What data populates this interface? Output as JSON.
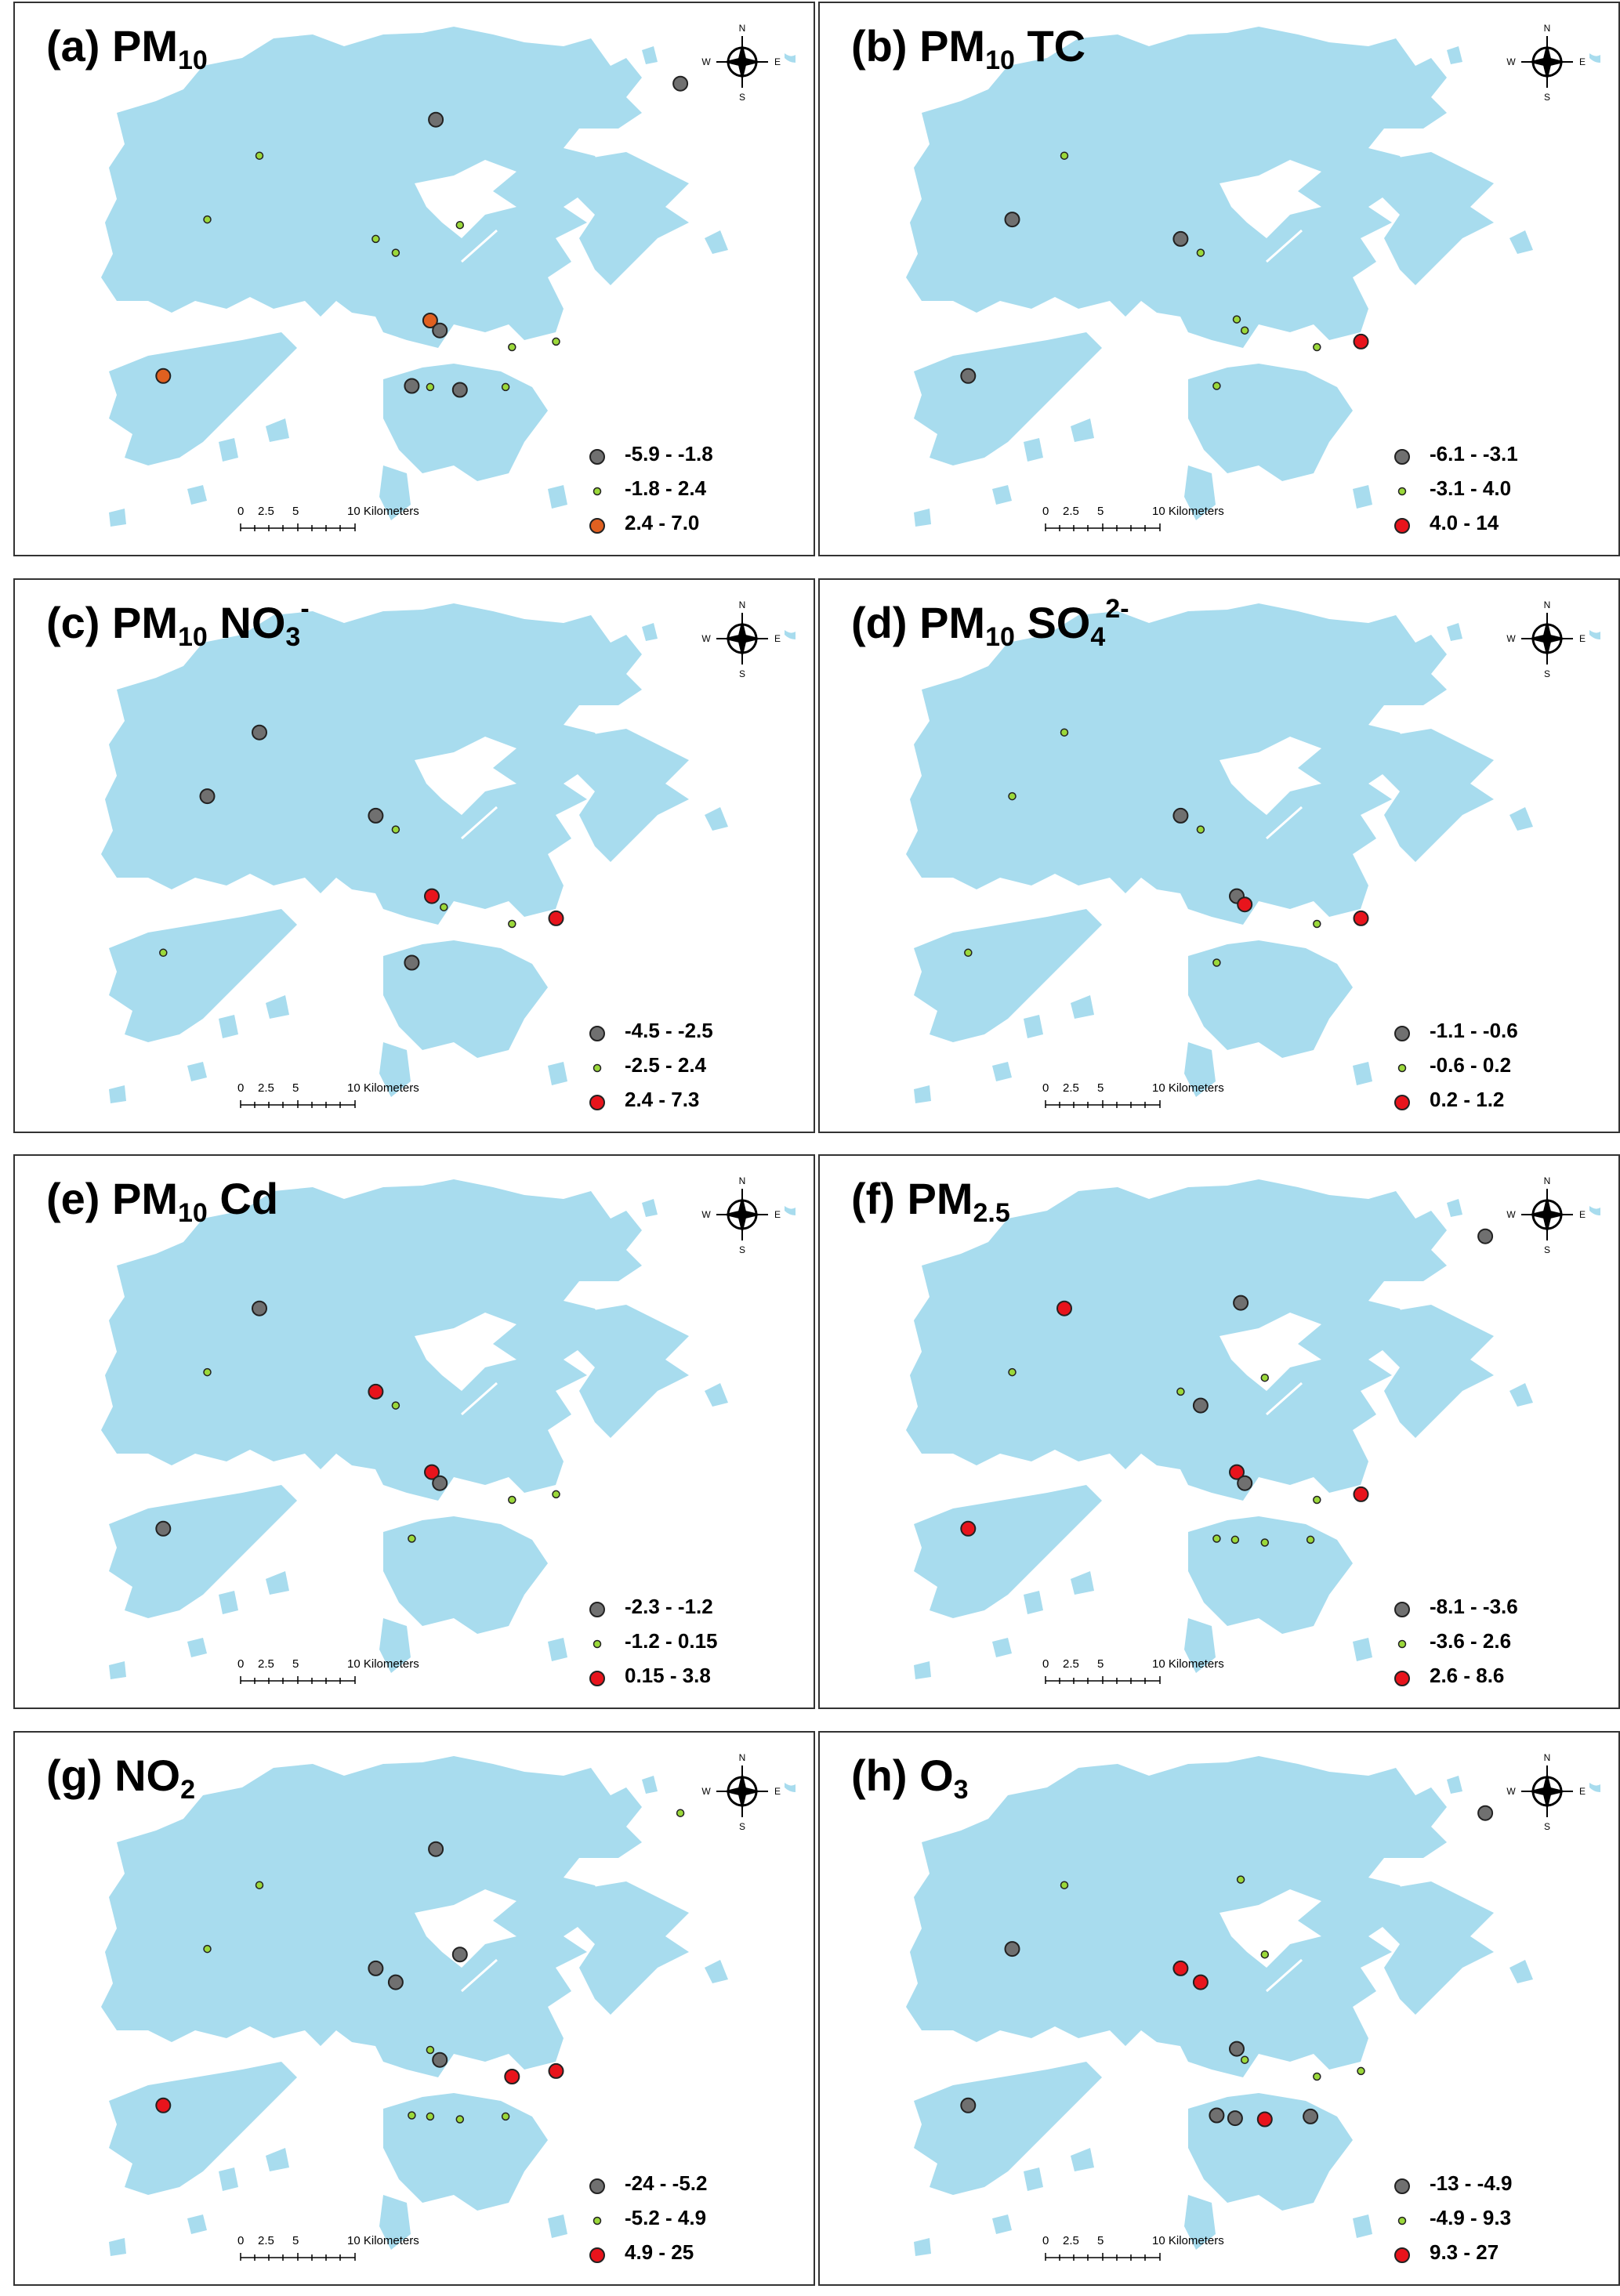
{
  "colors": {
    "land": "#a8dcee",
    "gray": "#707070",
    "green": "#9bd83a",
    "red": "#e8141c",
    "orange": "#e06020"
  },
  "compass": {
    "n": "N",
    "s": "S",
    "e": "E",
    "w": "W"
  },
  "scale": {
    "labels": [
      "0",
      "2.5",
      "5",
      "10 Kilometers"
    ]
  },
  "panels": [
    {
      "title": {
        "prefix": "(a) PM",
        "sub": "10",
        "suffix": "",
        "sup": ""
      },
      "legend": [
        "-5.9 - -1.8",
        "-1.8 - 2.4",
        "2.4 - 7.0"
      ],
      "high_color": "orange",
      "stations": [
        [
          "gray",
          0.525,
          0.21
        ],
        [
          "green",
          0.305,
          0.275
        ],
        [
          "green",
          0.24,
          0.39
        ],
        [
          "green",
          0.45,
          0.425
        ],
        [
          "green",
          0.475,
          0.45
        ],
        [
          "green",
          0.555,
          0.4
        ],
        [
          "orange",
          0.518,
          0.572
        ],
        [
          "gray",
          0.53,
          0.59
        ],
        [
          "green",
          0.62,
          0.62
        ],
        [
          "green",
          0.675,
          0.61
        ],
        [
          "gray",
          0.83,
          0.145
        ],
        [
          "orange",
          0.185,
          0.672
        ],
        [
          "gray",
          0.495,
          0.69
        ],
        [
          "green",
          0.518,
          0.692
        ],
        [
          "gray",
          0.555,
          0.697
        ],
        [
          "green",
          0.612,
          0.692
        ]
      ]
    },
    {
      "title": {
        "prefix": "(b) PM",
        "sub": "10",
        "suffix": " TC",
        "sup": ""
      },
      "legend": [
        "-6.1 - -3.1",
        "-3.1 - 4.0",
        "4.0 - 14"
      ],
      "high_color": "red",
      "stations": [
        [
          "green",
          0.305,
          0.275
        ],
        [
          "gray",
          0.24,
          0.39
        ],
        [
          "gray",
          0.45,
          0.425
        ],
        [
          "green",
          0.475,
          0.45
        ],
        [
          "green",
          0.52,
          0.57
        ],
        [
          "green",
          0.53,
          0.59
        ],
        [
          "green",
          0.62,
          0.62
        ],
        [
          "red",
          0.675,
          0.61
        ],
        [
          "gray",
          0.185,
          0.672
        ],
        [
          "green",
          0.495,
          0.69
        ]
      ]
    },
    {
      "title": {
        "prefix": "(c) PM",
        "sub": "10",
        "suffix": " NO",
        "sub2": "3",
        "sup": "-"
      },
      "legend": [
        "-4.5 - -2.5",
        "-2.5 - 2.4",
        "2.4 - 7.3"
      ],
      "high_color": "red",
      "stations": [
        [
          "gray",
          0.305,
          0.275
        ],
        [
          "gray",
          0.24,
          0.39
        ],
        [
          "gray",
          0.45,
          0.425
        ],
        [
          "green",
          0.475,
          0.45
        ],
        [
          "red",
          0.52,
          0.57
        ],
        [
          "green",
          0.535,
          0.59
        ],
        [
          "green",
          0.62,
          0.62
        ],
        [
          "red",
          0.675,
          0.61
        ],
        [
          "green",
          0.185,
          0.672
        ],
        [
          "gray",
          0.495,
          0.69
        ]
      ]
    },
    {
      "title": {
        "prefix": "(d) PM",
        "sub": "10",
        "suffix": " SO",
        "sub2": "4",
        "sup": "2-"
      },
      "legend": [
        "-1.1 - -0.6",
        "-0.6 - 0.2",
        "0.2 - 1.2"
      ],
      "high_color": "red",
      "stations": [
        [
          "green",
          0.305,
          0.275
        ],
        [
          "green",
          0.24,
          0.39
        ],
        [
          "gray",
          0.45,
          0.425
        ],
        [
          "green",
          0.475,
          0.45
        ],
        [
          "gray",
          0.52,
          0.57
        ],
        [
          "red",
          0.53,
          0.585
        ],
        [
          "green",
          0.62,
          0.62
        ],
        [
          "red",
          0.675,
          0.61
        ],
        [
          "green",
          0.185,
          0.672
        ],
        [
          "green",
          0.495,
          0.69
        ]
      ]
    },
    {
      "title": {
        "prefix": "(e) PM",
        "sub": "10",
        "suffix": " Cd",
        "sup": ""
      },
      "legend": [
        "-2.3 - -1.2",
        "-1.2 - 0.15",
        "0.15 - 3.8"
      ],
      "high_color": "red",
      "stations": [
        [
          "gray",
          0.305,
          0.275
        ],
        [
          "green",
          0.24,
          0.39
        ],
        [
          "red",
          0.45,
          0.425
        ],
        [
          "green",
          0.475,
          0.45
        ],
        [
          "red",
          0.52,
          0.57
        ],
        [
          "gray",
          0.53,
          0.59
        ],
        [
          "green",
          0.62,
          0.62
        ],
        [
          "green",
          0.675,
          0.61
        ],
        [
          "gray",
          0.185,
          0.672
        ],
        [
          "green",
          0.495,
          0.69
        ]
      ]
    },
    {
      "title": {
        "prefix": "(f) PM",
        "sub": "2.5",
        "suffix": "",
        "sup": ""
      },
      "legend": [
        "-8.1 - -3.6",
        "-3.6 - 2.6",
        "2.6 - 8.6"
      ],
      "high_color": "red",
      "stations": [
        [
          "red",
          0.305,
          0.275
        ],
        [
          "gray",
          0.525,
          0.265
        ],
        [
          "green",
          0.24,
          0.39
        ],
        [
          "green",
          0.45,
          0.425
        ],
        [
          "gray",
          0.475,
          0.45
        ],
        [
          "green",
          0.555,
          0.4
        ],
        [
          "red",
          0.52,
          0.57
        ],
        [
          "gray",
          0.53,
          0.59
        ],
        [
          "green",
          0.62,
          0.62
        ],
        [
          "red",
          0.675,
          0.61
        ],
        [
          "gray",
          0.83,
          0.145
        ],
        [
          "red",
          0.185,
          0.672
        ],
        [
          "green",
          0.495,
          0.69
        ],
        [
          "green",
          0.518,
          0.692
        ],
        [
          "green",
          0.555,
          0.697
        ],
        [
          "green",
          0.612,
          0.692
        ]
      ]
    },
    {
      "title": {
        "prefix": "(g) NO",
        "sub": "2",
        "suffix": "",
        "sup": ""
      },
      "legend": [
        "-24 - -5.2",
        "-5.2 - 4.9",
        "4.9 - 25"
      ],
      "high_color": "red",
      "stations": [
        [
          "gray",
          0.525,
          0.21
        ],
        [
          "green",
          0.305,
          0.275
        ],
        [
          "green",
          0.24,
          0.39
        ],
        [
          "gray",
          0.45,
          0.425
        ],
        [
          "gray",
          0.475,
          0.45
        ],
        [
          "gray",
          0.555,
          0.4
        ],
        [
          "green",
          0.518,
          0.572
        ],
        [
          "gray",
          0.53,
          0.59
        ],
        [
          "red",
          0.62,
          0.62
        ],
        [
          "red",
          0.675,
          0.61
        ],
        [
          "green",
          0.83,
          0.145
        ],
        [
          "red",
          0.185,
          0.672
        ],
        [
          "green",
          0.495,
          0.69
        ],
        [
          "green",
          0.518,
          0.692
        ],
        [
          "green",
          0.555,
          0.697
        ],
        [
          "green",
          0.612,
          0.692
        ]
      ]
    },
    {
      "title": {
        "prefix": "(h) O",
        "sub": "3",
        "suffix": "",
        "sup": ""
      },
      "legend": [
        "-13 - -4.9",
        "-4.9 - 9.3",
        "9.3 - 27"
      ],
      "high_color": "red",
      "stations": [
        [
          "gray",
          0.24,
          0.39
        ],
        [
          "green",
          0.305,
          0.275
        ],
        [
          "red",
          0.45,
          0.425
        ],
        [
          "red",
          0.475,
          0.45
        ],
        [
          "green",
          0.525,
          0.265
        ],
        [
          "green",
          0.555,
          0.4
        ],
        [
          "gray",
          0.52,
          0.57
        ],
        [
          "green",
          0.53,
          0.59
        ],
        [
          "green",
          0.62,
          0.62
        ],
        [
          "green",
          0.675,
          0.61
        ],
        [
          "gray",
          0.83,
          0.145
        ],
        [
          "gray",
          0.185,
          0.672
        ],
        [
          "gray",
          0.495,
          0.69
        ],
        [
          "gray",
          0.518,
          0.695
        ],
        [
          "red",
          0.555,
          0.697
        ],
        [
          "gray",
          0.612,
          0.692
        ]
      ]
    }
  ]
}
